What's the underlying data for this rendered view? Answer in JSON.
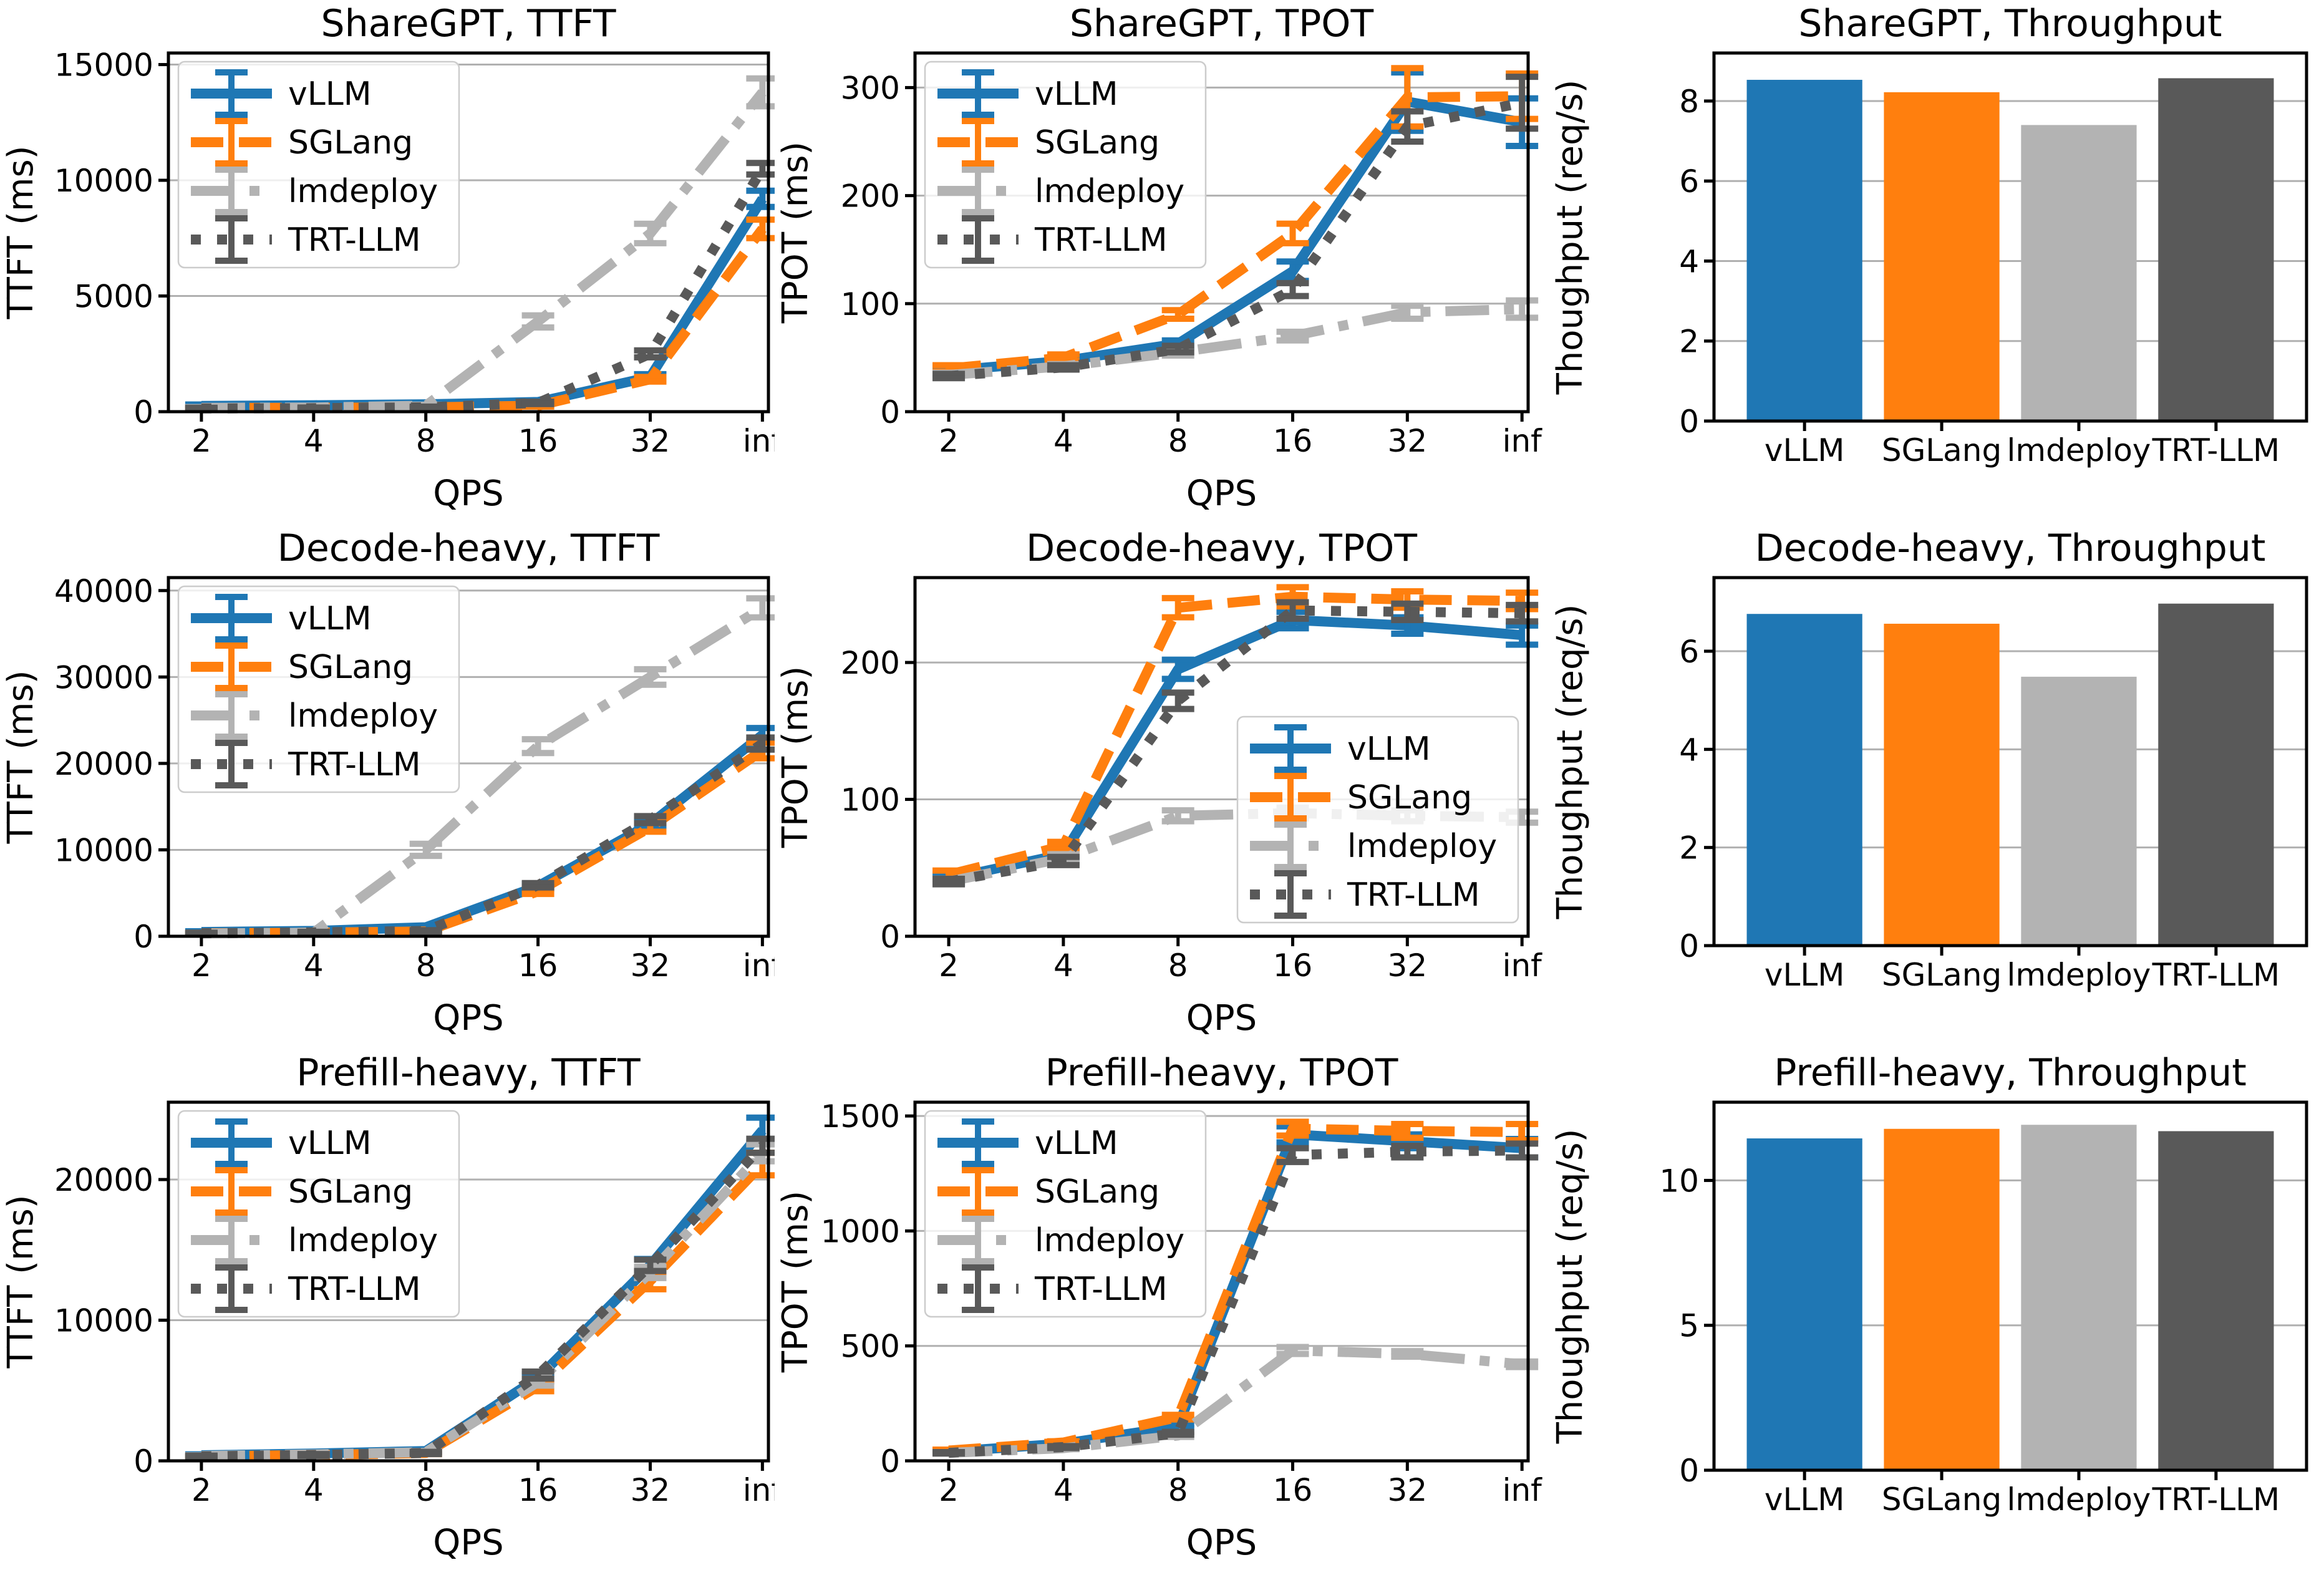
{
  "page": {
    "background": "#ffffff"
  },
  "palette": {
    "vLLM": "#1f77b4",
    "SGLang": "#ff7f0e",
    "lmdeploy": "#b3b3b3",
    "TRT-LLM": "#595959"
  },
  "grid_color": "#b0b0b0",
  "spine_color": "#000000",
  "series_names": [
    "vLLM",
    "SGLang",
    "lmdeploy",
    "TRT-LLM"
  ],
  "chart_data": [
    {
      "type": "line",
      "title": "ShareGPT, TTFT",
      "xlabel": "QPS",
      "ylabel": "TTFT (ms)",
      "x_ticklabels": [
        "2",
        "4",
        "8",
        "16",
        "32",
        "inf"
      ],
      "yticks": [
        0,
        5000,
        10000,
        15000
      ],
      "ylim": [
        0,
        15500
      ],
      "legend_pos": "nw",
      "series": [
        {
          "name": "vLLM",
          "style": "solid",
          "values": [
            250,
            280,
            320,
            420,
            1500,
            9200
          ],
          "err": [
            60,
            40,
            40,
            60,
            120,
            350
          ]
        },
        {
          "name": "SGLang",
          "style": "dashed",
          "values": [
            160,
            170,
            190,
            260,
            1400,
            7900
          ],
          "err": [
            30,
            30,
            30,
            40,
            100,
            400
          ]
        },
        {
          "name": "lmdeploy",
          "style": "dashdot",
          "values": [
            170,
            180,
            260,
            3900,
            7700,
            13800
          ],
          "err": [
            30,
            30,
            40,
            260,
            420,
            600
          ]
        },
        {
          "name": "TRT-LLM",
          "style": "dotted",
          "values": [
            140,
            150,
            190,
            380,
            2500,
            10500
          ],
          "err": [
            30,
            30,
            30,
            50,
            150,
            250
          ]
        }
      ]
    },
    {
      "type": "line",
      "title": "ShareGPT, TPOT",
      "xlabel": "QPS",
      "ylabel": "TPOT (ms)",
      "x_ticklabels": [
        "2",
        "4",
        "8",
        "16",
        "32",
        "inf"
      ],
      "yticks": [
        0,
        100,
        200,
        300
      ],
      "ylim": [
        0,
        332
      ],
      "legend_pos": "nw",
      "series": [
        {
          "name": "vLLM",
          "style": "solid",
          "values": [
            38,
            47,
            63,
            130,
            287,
            268
          ],
          "err": [
            4,
            3,
            3,
            9,
            27,
            22
          ]
        },
        {
          "name": "SGLang",
          "style": "dashed",
          "values": [
            40,
            50,
            90,
            165,
            291,
            292
          ],
          "err": [
            3,
            3,
            4,
            9,
            27,
            21
          ]
        },
        {
          "name": "lmdeploy",
          "style": "dashdot",
          "values": [
            34,
            42,
            55,
            70,
            92,
            95
          ],
          "err": [
            2,
            2,
            3,
            4,
            6,
            8
          ]
        },
        {
          "name": "TRT-LLM",
          "style": "dotted",
          "values": [
            33,
            41,
            58,
            113,
            264,
            286
          ],
          "err": [
            2,
            2,
            3,
            6,
            14,
            24
          ]
        }
      ]
    },
    {
      "type": "bar",
      "title": "ShareGPT, Throughput",
      "ylabel": "Thoughput (req/s)",
      "categories": [
        "vLLM",
        "SGLang",
        "lmdeploy",
        "TRT-LLM"
      ],
      "values": [
        8.53,
        8.22,
        7.4,
        8.57
      ],
      "yticks": [
        0,
        2,
        4,
        6,
        8
      ],
      "ylim": [
        0,
        9.2
      ]
    },
    {
      "type": "line",
      "title": "Decode-heavy, TTFT",
      "xlabel": "QPS",
      "ylabel": "TTFT (ms)",
      "x_ticklabels": [
        "2",
        "4",
        "8",
        "16",
        "32",
        "inf"
      ],
      "yticks": [
        0,
        10000,
        20000,
        30000,
        40000
      ],
      "ylim": [
        0,
        41500
      ],
      "legend_pos": "nw",
      "series": [
        {
          "name": "vLLM",
          "style": "solid",
          "values": [
            500,
            620,
            1050,
            5800,
            13000,
            23300
          ],
          "err": [
            80,
            80,
            120,
            250,
            400,
            800
          ]
        },
        {
          "name": "SGLang",
          "style": "dashed",
          "values": [
            350,
            420,
            560,
            5200,
            12600,
            21500
          ],
          "err": [
            60,
            60,
            80,
            300,
            500,
            900
          ]
        },
        {
          "name": "lmdeploy",
          "style": "dashdot",
          "values": [
            320,
            420,
            10000,
            22000,
            30000,
            38000
          ],
          "err": [
            50,
            60,
            700,
            800,
            900,
            1100
          ]
        },
        {
          "name": "TRT-LLM",
          "style": "dotted",
          "values": [
            350,
            450,
            620,
            5900,
            13500,
            22300
          ],
          "err": [
            60,
            60,
            80,
            250,
            400,
            700
          ]
        }
      ]
    },
    {
      "type": "line",
      "title": "Decode-heavy, TPOT",
      "xlabel": "QPS",
      "ylabel": "TPOT (ms)",
      "x_ticklabels": [
        "2",
        "4",
        "8",
        "16",
        "32",
        "inf"
      ],
      "yticks": [
        0,
        100,
        200
      ],
      "ylim": [
        0,
        262
      ],
      "legend_pos": "se",
      "series": [
        {
          "name": "vLLM",
          "style": "solid",
          "values": [
            42,
            60,
            195,
            231,
            227,
            220
          ],
          "err": [
            3,
            3,
            7,
            6,
            6,
            7
          ]
        },
        {
          "name": "SGLang",
          "style": "dashed",
          "values": [
            45,
            66,
            240,
            248,
            246,
            245
          ],
          "err": [
            3,
            3,
            7,
            7,
            6,
            6
          ]
        },
        {
          "name": "lmdeploy",
          "style": "dashdot",
          "values": [
            40,
            57,
            88,
            90,
            88,
            87
          ],
          "err": [
            2,
            3,
            4,
            4,
            4,
            4
          ]
        },
        {
          "name": "TRT-LLM",
          "style": "dotted",
          "values": [
            40,
            55,
            172,
            238,
            237,
            236
          ],
          "err": [
            2,
            3,
            6,
            6,
            6,
            6
          ]
        }
      ]
    },
    {
      "type": "bar",
      "title": "Decode-heavy, Throughput",
      "ylabel": "Thoughput (req/s)",
      "categories": [
        "vLLM",
        "SGLang",
        "lmdeploy",
        "TRT-LLM"
      ],
      "values": [
        6.76,
        6.56,
        5.48,
        6.97
      ],
      "yticks": [
        0,
        2,
        4,
        6
      ],
      "ylim": [
        0,
        7.5
      ]
    },
    {
      "type": "line",
      "title": "Prefill-heavy, TTFT",
      "xlabel": "QPS",
      "ylabel": "TTFT (ms)",
      "x_ticklabels": [
        "2",
        "4",
        "8",
        "16",
        "32",
        "inf"
      ],
      "yticks": [
        0,
        10000,
        20000
      ],
      "ylim": [
        0,
        25500
      ],
      "legend_pos": "nw",
      "series": [
        {
          "name": "vLLM",
          "style": "solid",
          "values": [
            400,
            520,
            700,
            5900,
            13900,
            23500
          ],
          "err": [
            60,
            60,
            80,
            250,
            450,
            900
          ]
        },
        {
          "name": "SGLang",
          "style": "dashed",
          "values": [
            320,
            420,
            560,
            5300,
            12800,
            21100
          ],
          "err": [
            50,
            60,
            80,
            350,
            600,
            800
          ]
        },
        {
          "name": "lmdeploy",
          "style": "dashdot",
          "values": [
            350,
            460,
            620,
            5600,
            13400,
            21900
          ],
          "err": [
            50,
            60,
            80,
            250,
            400,
            600
          ]
        },
        {
          "name": "TRT-LLM",
          "style": "dotted",
          "values": [
            320,
            420,
            560,
            6100,
            13900,
            22400
          ],
          "err": [
            50,
            60,
            80,
            250,
            400,
            500
          ]
        }
      ]
    },
    {
      "type": "line",
      "title": "Prefill-heavy, TPOT",
      "xlabel": "QPS",
      "ylabel": "TPOT (ms)",
      "x_ticklabels": [
        "2",
        "4",
        "8",
        "16",
        "32",
        "inf"
      ],
      "yticks": [
        0,
        500,
        1000,
        1500
      ],
      "ylim": [
        0,
        1560
      ],
      "legend_pos": "nw",
      "series": [
        {
          "name": "vLLM",
          "style": "solid",
          "values": [
            40,
            75,
            150,
            1420,
            1390,
            1360
          ],
          "err": [
            4,
            5,
            8,
            35,
            30,
            40
          ]
        },
        {
          "name": "SGLang",
          "style": "dashed",
          "values": [
            45,
            80,
            190,
            1445,
            1435,
            1430
          ],
          "err": [
            4,
            5,
            10,
            30,
            30,
            35
          ]
        },
        {
          "name": "lmdeploy",
          "style": "dashdot",
          "values": [
            35,
            55,
            110,
            480,
            465,
            420
          ],
          "err": [
            3,
            4,
            6,
            15,
            12,
            12
          ]
        },
        {
          "name": "TRT-LLM",
          "style": "dotted",
          "values": [
            35,
            60,
            120,
            1330,
            1345,
            1350
          ],
          "err": [
            3,
            4,
            6,
            30,
            25,
            30
          ]
        }
      ]
    },
    {
      "type": "bar",
      "title": "Prefill-heavy, Throughput",
      "ylabel": "Thoughput (req/s)",
      "categories": [
        "vLLM",
        "SGLang",
        "lmdeploy",
        "TRT-LLM"
      ],
      "values": [
        11.45,
        11.78,
        11.92,
        11.7
      ],
      "yticks": [
        0,
        5,
        10
      ],
      "ylim": [
        0,
        12.7
      ]
    }
  ]
}
